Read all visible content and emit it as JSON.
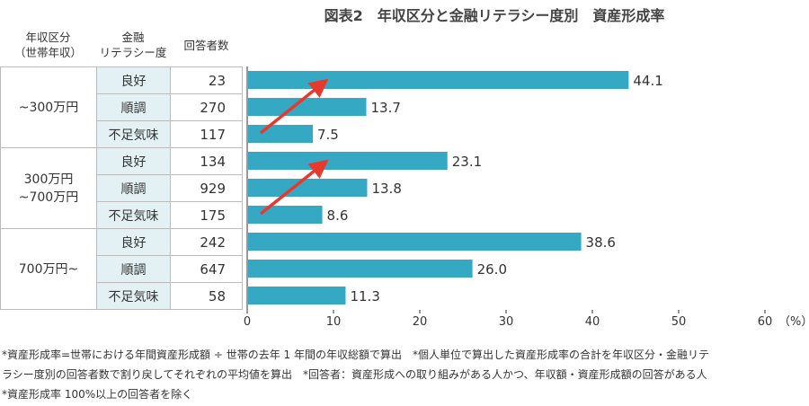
{
  "title": "図表2　年収区分と金融リテラシー度別　資産形成率",
  "headers": {
    "income": "年収区分\n（世帯年収）",
    "income_l1": "年収区分",
    "income_l2": "（世帯年収）",
    "lit_l1": "金融",
    "lit_l2": "リテラシー度",
    "count": "回答者数"
  },
  "groups": [
    {
      "label": "~300万円",
      "rows": [
        {
          "lit": "良好",
          "n": "23"
        },
        {
          "lit": "順調",
          "n": "270"
        },
        {
          "lit": "不足気味",
          "n": "117"
        }
      ]
    },
    {
      "label": "300万円\n~700万円",
      "rows": [
        {
          "lit": "良好",
          "n": "134"
        },
        {
          "lit": "順調",
          "n": "929"
        },
        {
          "lit": "不足気味",
          "n": "175"
        }
      ]
    },
    {
      "label": "700万円~",
      "rows": [
        {
          "lit": "良好",
          "n": "242"
        },
        {
          "lit": "順調",
          "n": "647"
        },
        {
          "lit": "不足気味",
          "n": "58"
        }
      ]
    }
  ],
  "chart_data": {
    "type": "bar",
    "orientation": "horizontal",
    "values": [
      44.1,
      13.7,
      7.5,
      23.1,
      13.8,
      8.6,
      38.6,
      26.0,
      11.3
    ],
    "value_labels": [
      "44.1",
      "13.7",
      "7.5",
      "23.1",
      "13.8",
      "8.6",
      "38.6",
      "26.0",
      "11.3"
    ],
    "xlim": [
      0,
      60
    ],
    "ticks": [
      "0",
      "10",
      "20",
      "30",
      "40",
      "50",
      "60"
    ],
    "unit": "（%）",
    "bar_color": "#35a9c4",
    "arrow_color": "#e8392d"
  },
  "footnotes": [
    "*資産形成率=世帯における年間資産形成額 ÷ 世帯の去年 1 年間の年収総額で算出　*個人単位で算出した資産形成率の合計を年収区分・金融リテ",
    "ラシー度別の回答者数で割り戻してそれぞれの平均値を算出　*回答者：資産形成への取り組みがある人かつ、年収額・資産形成額の回答がある人",
    "*資産形成率 100%以上の回答者を除く"
  ]
}
